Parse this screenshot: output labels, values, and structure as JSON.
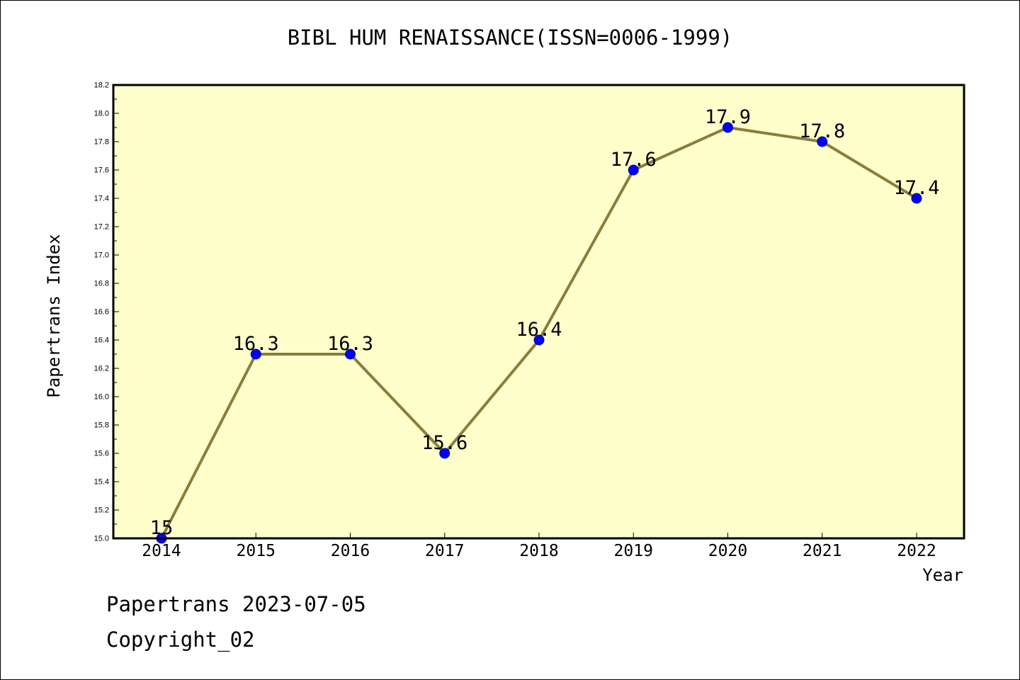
{
  "chart_data": {
    "type": "line",
    "title": "BIBL HUM RENAISSANCE(ISSN=0006-1999)",
    "xlabel": "Year",
    "ylabel": "Papertrans Index",
    "categories": [
      "2014",
      "2015",
      "2016",
      "2017",
      "2018",
      "2019",
      "2020",
      "2021",
      "2022"
    ],
    "series": [
      {
        "values": [
          15,
          16.3,
          16.3,
          15.6,
          16.4,
          17.6,
          17.9,
          17.8,
          17.4
        ],
        "labels": [
          "15",
          "16.3",
          "16.3",
          "15.6",
          "16.4",
          "17.6",
          "17.9",
          "17.8",
          "17.4"
        ]
      }
    ],
    "ylim": [
      15.0,
      18.2
    ],
    "yticks": [
      "15.0",
      "15.2",
      "15.4",
      "15.6",
      "15.8",
      "16.0",
      "16.2",
      "16.4",
      "16.6",
      "16.8",
      "17.0",
      "17.2",
      "17.4",
      "17.6",
      "17.8",
      "18.0",
      "18.2"
    ],
    "grid": false,
    "legend": "none",
    "colors": {
      "plot_background": "#ffffcc",
      "line": "#8b7d3a",
      "marker": "#0000ff",
      "frame": "#000000"
    }
  },
  "footer": {
    "line1": "Papertrans 2023-07-05",
    "line2": "Copyright_02"
  }
}
